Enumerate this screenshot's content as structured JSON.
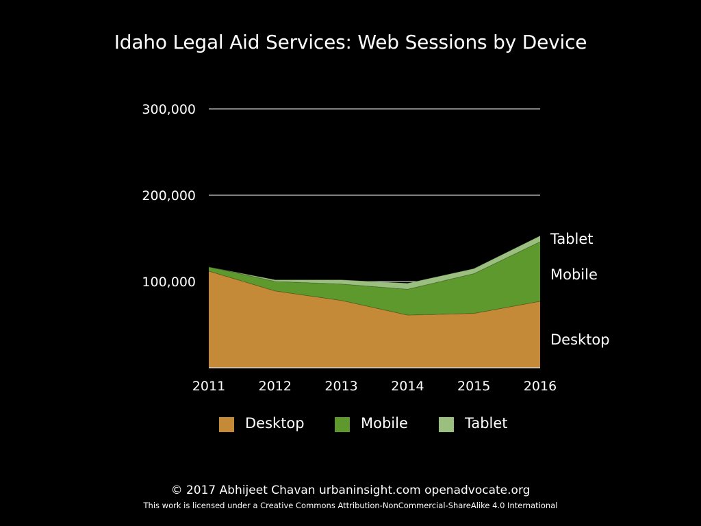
{
  "chart_data": {
    "type": "area",
    "stacked": true,
    "title": "Idaho Legal Aid Services: Web Sessions by Device",
    "x": [
      "2011",
      "2012",
      "2013",
      "2014",
      "2015",
      "2016"
    ],
    "ylim": [
      0,
      300000
    ],
    "yticks": [
      100000,
      200000,
      300000
    ],
    "ytick_labels": [
      "100,000",
      "200,000",
      "300,000"
    ],
    "grid": true,
    "series": [
      {
        "name": "Desktop",
        "color": "#c58a38",
        "values": [
          112000,
          89000,
          78000,
          61000,
          63000,
          77000
        ]
      },
      {
        "name": "Mobile",
        "color": "#5e992e",
        "values": [
          5000,
          11000,
          19000,
          30000,
          46000,
          69000
        ]
      },
      {
        "name": "Tablet",
        "color": "#9abf7e",
        "values": [
          0,
          2000,
          5000,
          7000,
          6000,
          7000
        ]
      }
    ],
    "series_end_labels": [
      "Desktop",
      "Mobile",
      "Tablet"
    ],
    "legend": {
      "position": "bottom",
      "items": [
        {
          "label": "Desktop",
          "color": "#c58a38"
        },
        {
          "label": "Mobile",
          "color": "#5e992e"
        },
        {
          "label": "Tablet",
          "color": "#9abf7e"
        }
      ]
    }
  },
  "footer": {
    "copyright": "© 2017  Abhijeet Chavan  urbaninsight.com  openadvocate.org",
    "license": "This work is licensed under a Creative Commons Attribution-NonCommercial-ShareAlike 4.0 International"
  }
}
